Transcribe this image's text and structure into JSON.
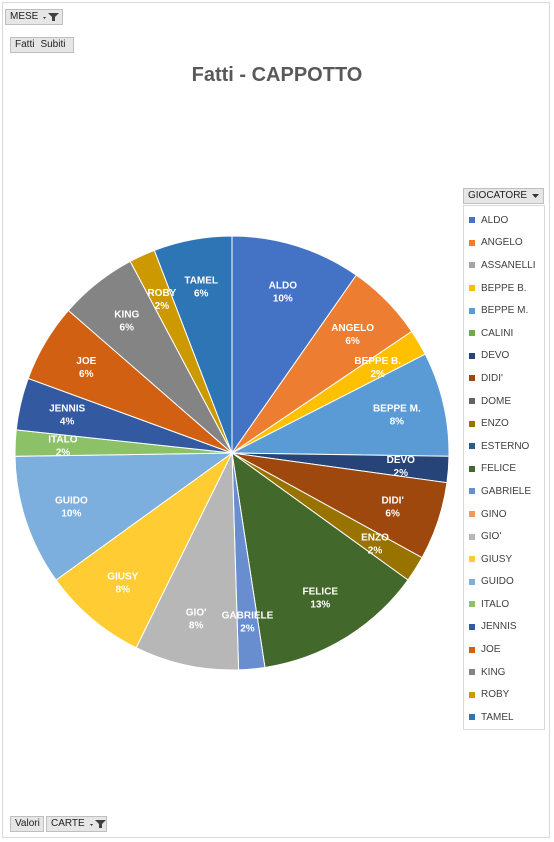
{
  "filters": {
    "mese_label": "MESE",
    "fatti_label": "Fatti",
    "subiti_label": "Subiti",
    "valori_label": "Valori",
    "carte_label": "CARTE",
    "giocatore_label": "GIOCATORE"
  },
  "chart_data": {
    "type": "pie",
    "title": "Fatti - CAPPOTTO",
    "legend_position": "right",
    "slices": [
      {
        "label": "ALDO",
        "value": 10,
        "display": "10%",
        "color": "#4472c4"
      },
      {
        "label": "ANGELO",
        "value": 6,
        "display": "6%",
        "color": "#ed7d31"
      },
      {
        "label": "ASSANELLI",
        "value": 0,
        "display": "",
        "color": "#a5a5a5"
      },
      {
        "label": "BEPPE B.",
        "value": 2,
        "display": "2%",
        "color": "#ffc000"
      },
      {
        "label": "BEPPE M.",
        "value": 8,
        "display": "8%",
        "color": "#5b9bd5"
      },
      {
        "label": "CALINI",
        "value": 0,
        "display": "",
        "color": "#70ad47"
      },
      {
        "label": "DEVO",
        "value": 2,
        "display": "2%",
        "color": "#264478"
      },
      {
        "label": "DIDI'",
        "value": 6,
        "display": "6%",
        "color": "#9e480e"
      },
      {
        "label": "DOME",
        "value": 0,
        "display": "",
        "color": "#636363"
      },
      {
        "label": "ENZO",
        "value": 2,
        "display": "2%",
        "color": "#997300"
      },
      {
        "label": "ESTERNO",
        "value": 0,
        "display": "",
        "color": "#255e91"
      },
      {
        "label": "FELICE",
        "value": 13,
        "display": "13%",
        "color": "#43682b"
      },
      {
        "label": "GABRIELE",
        "value": 2,
        "display": "2%",
        "color": "#698ed0"
      },
      {
        "label": "GINO",
        "value": 0,
        "display": "",
        "color": "#f1975a"
      },
      {
        "label": "GIO'",
        "value": 8,
        "display": "8%",
        "color": "#b7b7b7"
      },
      {
        "label": "GIUSY",
        "value": 8,
        "display": "8%",
        "color": "#ffcd33"
      },
      {
        "label": "GUIDO",
        "value": 10,
        "display": "10%",
        "color": "#7cafdd"
      },
      {
        "label": "ITALO",
        "value": 2,
        "display": "2%",
        "color": "#8cc168"
      },
      {
        "label": "JENNIS",
        "value": 4,
        "display": "4%",
        "color": "#335aa1"
      },
      {
        "label": "JOE",
        "value": 6,
        "display": "6%",
        "color": "#d26012"
      },
      {
        "label": "KING",
        "value": 6,
        "display": "6%",
        "color": "#848484"
      },
      {
        "label": "ROBY",
        "value": 2,
        "display": "2%",
        "color": "#cc9a00"
      },
      {
        "label": "TAMEL",
        "value": 6,
        "display": "6%",
        "color": "#2e75b6"
      }
    ]
  }
}
